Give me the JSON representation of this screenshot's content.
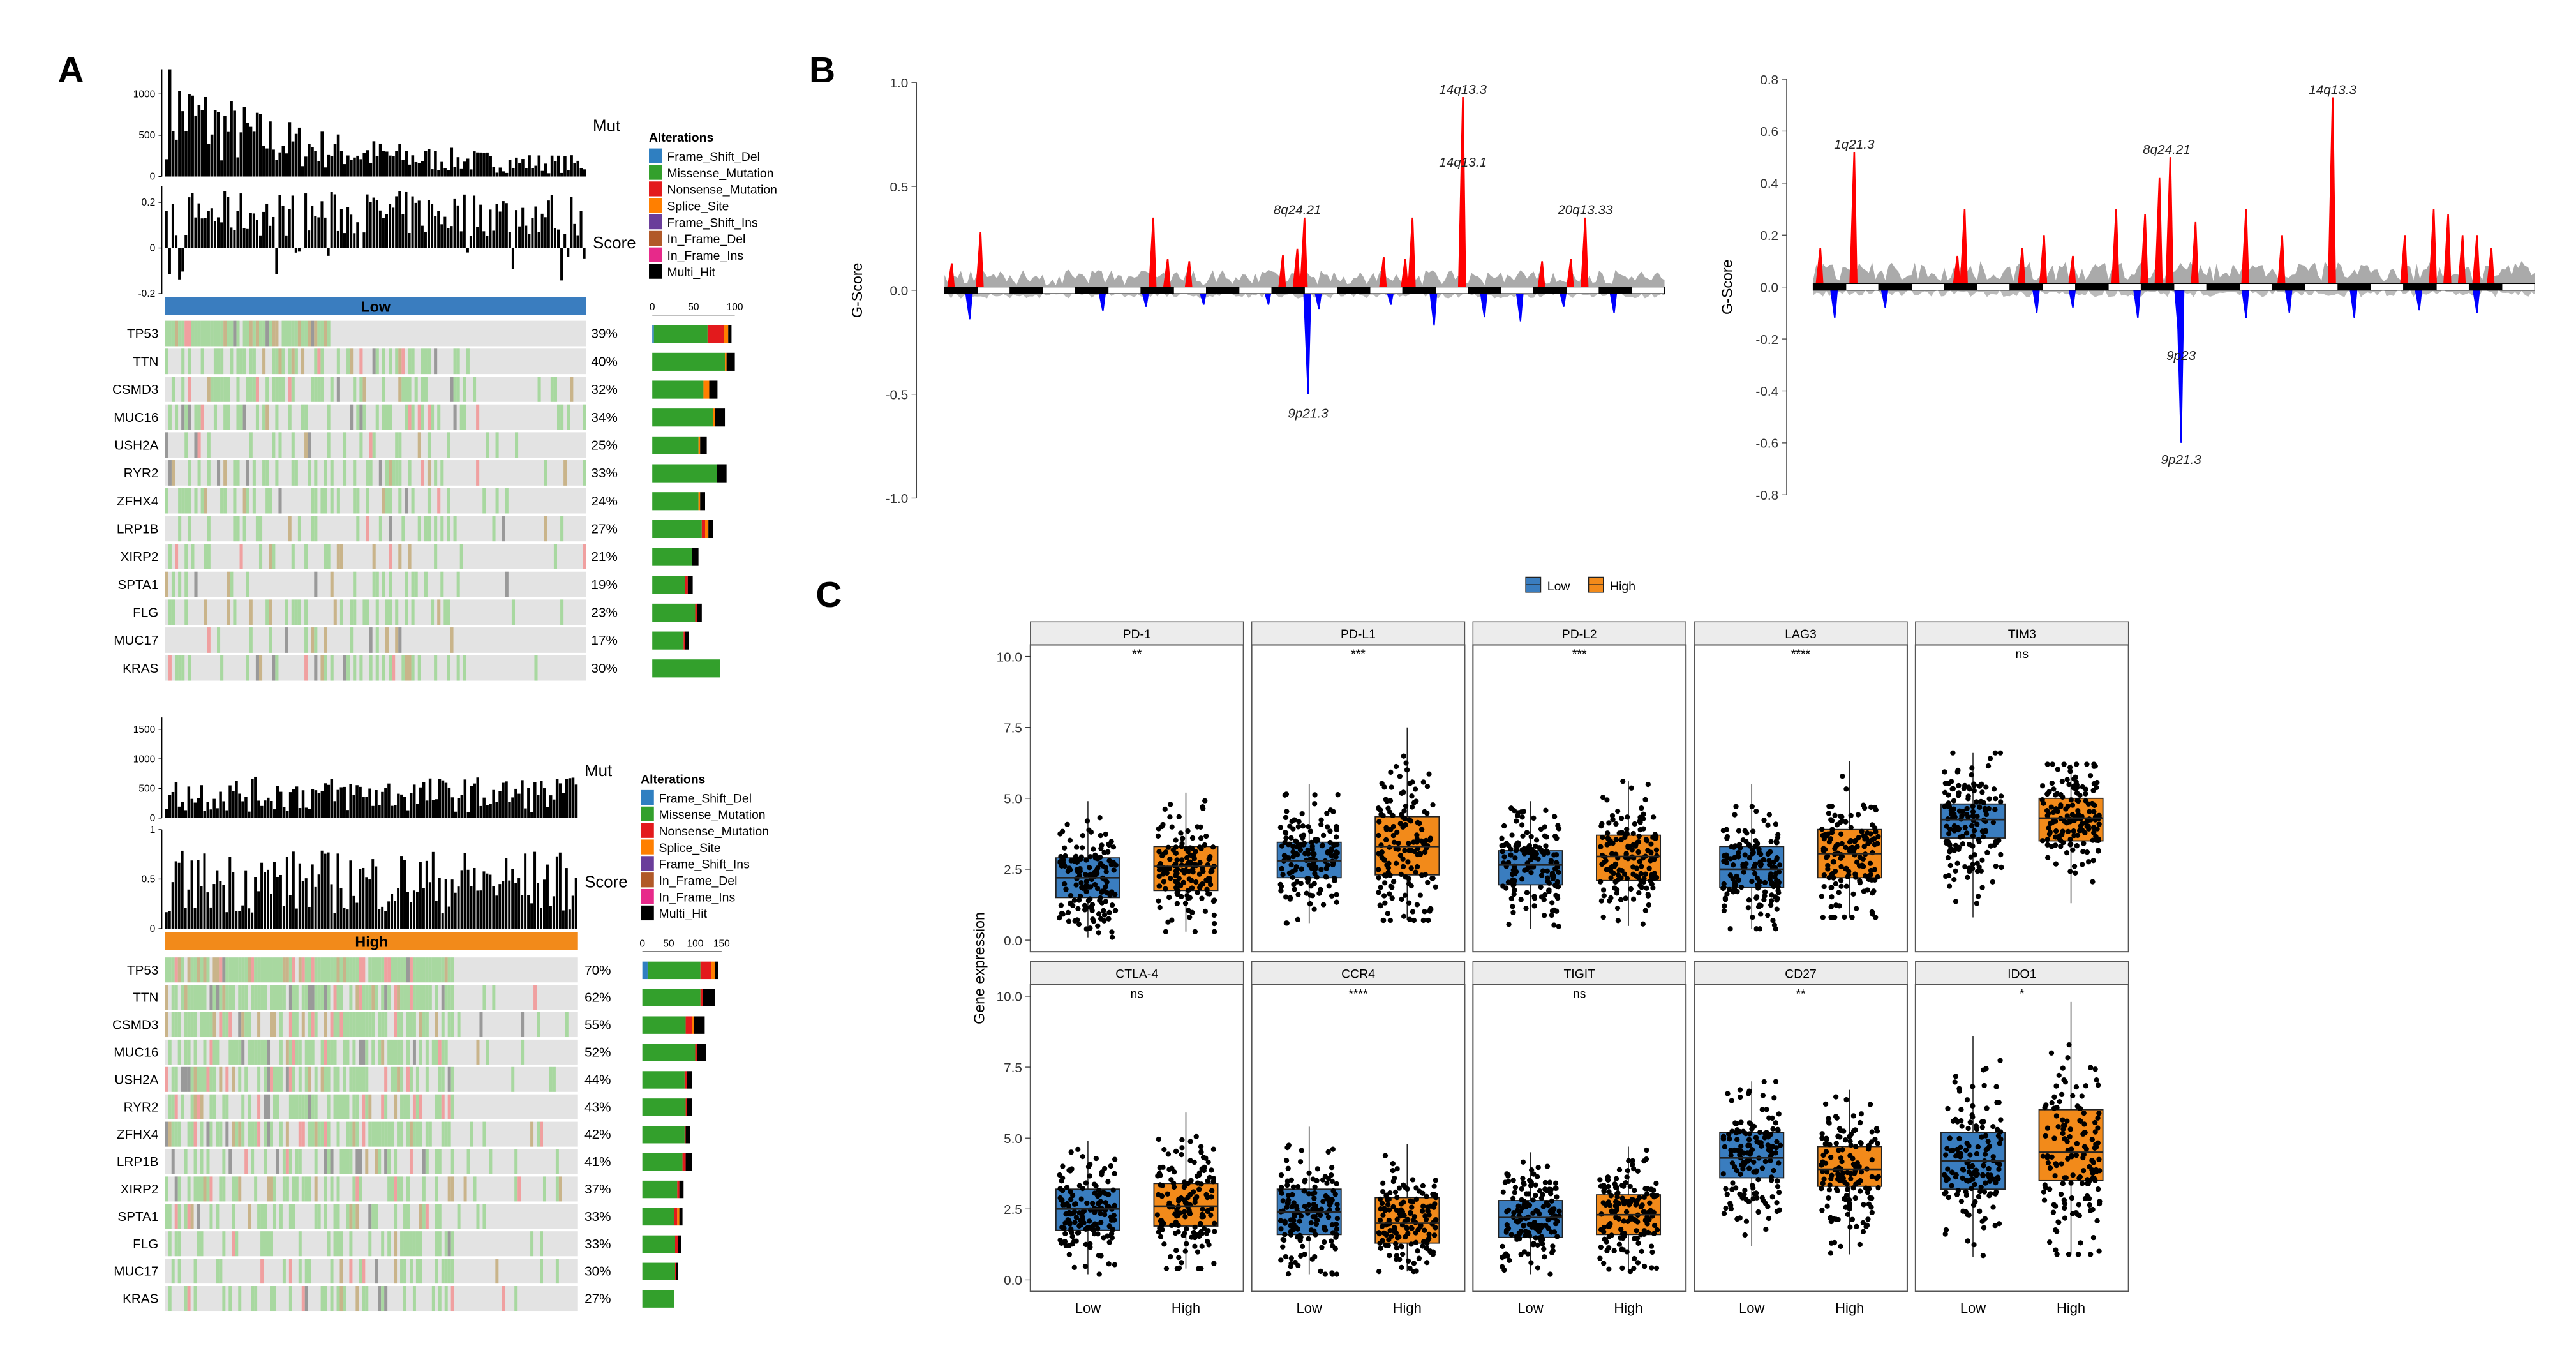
{
  "panels": {
    "a": "A",
    "b": "B",
    "c": "C"
  },
  "colors": {
    "Frame_Shift_Del": "#2f7fc1",
    "Missense_Mutation": "#33a02c",
    "Nonsense_Mutation": "#e31a1c",
    "Splice_Site": "#ff7f00",
    "Frame_Shift_Ins": "#6a3d9a",
    "In_Frame_Del": "#b15928",
    "In_Frame_Ins": "#e7298a",
    "Multi_Hit": "#000000",
    "low": "#3a7dbf",
    "high": "#f28a1a",
    "amp": "#ff0000",
    "del": "#0000ff"
  },
  "chart_data": [
    {
      "type": "oncoplot",
      "group": "Low",
      "mut_label": "Mut",
      "score_label": "Score",
      "mut_ticks": [
        0,
        500,
        1000
      ],
      "mut_ylim": [
        0,
        1300
      ],
      "score_ticks": [
        -0.2,
        0,
        0.2
      ],
      "score_ylim": [
        -0.2,
        0.27
      ],
      "legend_title": "Alterations",
      "legend": [
        "Frame_Shift_Del",
        "Missense_Mutation",
        "Nonsense_Mutation",
        "Splice_Site",
        "Frame_Shift_Ins",
        "In_Frame_Del",
        "In_Frame_Ins",
        "Multi_Hit"
      ],
      "side_ticks": [
        0,
        50,
        100
      ],
      "side_xlim": [
        0,
        110
      ],
      "genes": [
        {
          "gene": "TP53",
          "pct": "39%",
          "counts": {
            "Frame_Shift_Del": 2,
            "Missense_Mutation": 65,
            "Nonsense_Mutation": 20,
            "Splice_Site": 5,
            "Multi_Hit": 4
          }
        },
        {
          "gene": "TTN",
          "pct": "40%",
          "counts": {
            "Missense_Mutation": 88,
            "Splice_Site": 2,
            "Multi_Hit": 10
          }
        },
        {
          "gene": "CSMD3",
          "pct": "32%",
          "counts": {
            "Missense_Mutation": 62,
            "Splice_Site": 7,
            "Multi_Hit": 10
          }
        },
        {
          "gene": "MUC16",
          "pct": "34%",
          "counts": {
            "Missense_Mutation": 74,
            "Splice_Site": 2,
            "Multi_Hit": 12
          }
        },
        {
          "gene": "USH2A",
          "pct": "25%",
          "counts": {
            "Missense_Mutation": 56,
            "Splice_Site": 2,
            "Multi_Hit": 8
          }
        },
        {
          "gene": "RYR2",
          "pct": "33%",
          "counts": {
            "Missense_Mutation": 78,
            "Multi_Hit": 12
          }
        },
        {
          "gene": "ZFHX4",
          "pct": "24%",
          "counts": {
            "Missense_Mutation": 56,
            "Splice_Site": 2,
            "Multi_Hit": 6
          }
        },
        {
          "gene": "LRP1B",
          "pct": "27%",
          "counts": {
            "Missense_Mutation": 60,
            "Nonsense_Mutation": 4,
            "Splice_Site": 4,
            "Multi_Hit": 6
          }
        },
        {
          "gene": "XIRP2",
          "pct": "21%",
          "counts": {
            "Missense_Mutation": 48,
            "Multi_Hit": 8
          }
        },
        {
          "gene": "SPTA1",
          "pct": "19%",
          "counts": {
            "Missense_Mutation": 40,
            "Nonsense_Mutation": 3,
            "Multi_Hit": 6
          }
        },
        {
          "gene": "FLG",
          "pct": "23%",
          "counts": {
            "Missense_Mutation": 52,
            "Nonsense_Mutation": 2,
            "Multi_Hit": 6
          }
        },
        {
          "gene": "MUC17",
          "pct": "17%",
          "counts": {
            "Missense_Mutation": 38,
            "Nonsense_Mutation": 2,
            "Multi_Hit": 4
          }
        },
        {
          "gene": "KRAS",
          "pct": "30%",
          "counts": {
            "Missense_Mutation": 82
          }
        }
      ]
    },
    {
      "type": "oncoplot",
      "group": "High",
      "mut_label": "Mut",
      "score_label": "Score",
      "mut_ticks": [
        0,
        500,
        1000,
        1500
      ],
      "mut_ylim": [
        0,
        1700
      ],
      "score_ticks": [
        0,
        0.5,
        1
      ],
      "score_ylim": [
        0,
        1
      ],
      "legend_title": "Alterations",
      "legend": [
        "Frame_Shift_Del",
        "Missense_Mutation",
        "Nonsense_Mutation",
        "Splice_Site",
        "Frame_Shift_Ins",
        "In_Frame_Del",
        "In_Frame_Ins",
        "Multi_Hit"
      ],
      "side_ticks": [
        0,
        50,
        100,
        150
      ],
      "side_xlim": [
        0,
        165
      ],
      "genes": [
        {
          "gene": "TP53",
          "pct": "70%",
          "counts": {
            "Frame_Shift_Del": 10,
            "Missense_Mutation": 100,
            "Nonsense_Mutation": 20,
            "Splice_Site": 8,
            "Multi_Hit": 6
          }
        },
        {
          "gene": "TTN",
          "pct": "62%",
          "counts": {
            "Missense_Mutation": 110,
            "Nonsense_Mutation": 4,
            "Multi_Hit": 24
          }
        },
        {
          "gene": "CSMD3",
          "pct": "55%",
          "counts": {
            "Missense_Mutation": 82,
            "Nonsense_Mutation": 12,
            "Splice_Site": 4,
            "Multi_Hit": 20
          }
        },
        {
          "gene": "MUC16",
          "pct": "52%",
          "counts": {
            "Missense_Mutation": 100,
            "Nonsense_Mutation": 4,
            "Multi_Hit": 16
          }
        },
        {
          "gene": "USH2A",
          "pct": "44%",
          "counts": {
            "Missense_Mutation": 80,
            "Nonsense_Mutation": 4,
            "Multi_Hit": 10
          }
        },
        {
          "gene": "RYR2",
          "pct": "43%",
          "counts": {
            "Missense_Mutation": 82,
            "Nonsense_Mutation": 2,
            "Multi_Hit": 10
          }
        },
        {
          "gene": "ZFHX4",
          "pct": "42%",
          "counts": {
            "Missense_Mutation": 80,
            "Nonsense_Mutation": 2,
            "Multi_Hit": 8
          }
        },
        {
          "gene": "LRP1B",
          "pct": "41%",
          "counts": {
            "Missense_Mutation": 76,
            "Nonsense_Mutation": 6,
            "Multi_Hit": 12
          }
        },
        {
          "gene": "XIRP2",
          "pct": "37%",
          "counts": {
            "Missense_Mutation": 66,
            "Nonsense_Mutation": 4,
            "Multi_Hit": 8
          }
        },
        {
          "gene": "SPTA1",
          "pct": "33%",
          "counts": {
            "Missense_Mutation": 60,
            "Nonsense_Mutation": 6,
            "Splice_Site": 4,
            "Multi_Hit": 6
          }
        },
        {
          "gene": "FLG",
          "pct": "33%",
          "counts": {
            "Missense_Mutation": 62,
            "Nonsense_Mutation": 6,
            "Multi_Hit": 6
          }
        },
        {
          "gene": "MUC17",
          "pct": "30%",
          "counts": {
            "Missense_Mutation": 62,
            "Nonsense_Mutation": 2,
            "Multi_Hit": 4
          }
        },
        {
          "gene": "KRAS",
          "pct": "27%",
          "counts": {
            "Missense_Mutation": 60
          }
        }
      ]
    },
    {
      "type": "area",
      "name": "GISTIC Low",
      "ylabel": "G-Score",
      "ylim": [
        -1.0,
        1.0
      ],
      "yticks": [
        "1.0",
        "0.5",
        "0.0",
        "-0.5",
        "-1.0"
      ],
      "ytick_values": [
        1.0,
        0.5,
        0.0,
        -0.5,
        -1.0
      ],
      "amp_peaks": [
        [
          0.01,
          0.13
        ],
        [
          0.05,
          0.28
        ],
        [
          0.29,
          0.35
        ],
        [
          0.31,
          0.15
        ],
        [
          0.34,
          0.14
        ],
        [
          0.47,
          0.17
        ],
        [
          0.49,
          0.2
        ],
        [
          0.5,
          0.35
        ],
        [
          0.61,
          0.16
        ],
        [
          0.64,
          0.15
        ],
        [
          0.65,
          0.35
        ],
        [
          0.72,
          0.93
        ],
        [
          0.83,
          0.14
        ],
        [
          0.87,
          0.15
        ],
        [
          0.89,
          0.35
        ]
      ],
      "del_peaks": [
        [
          0.035,
          -0.14
        ],
        [
          0.22,
          -0.1
        ],
        [
          0.28,
          -0.08
        ],
        [
          0.36,
          -0.07
        ],
        [
          0.45,
          -0.07
        ],
        [
          0.505,
          -0.5
        ],
        [
          0.52,
          -0.09
        ],
        [
          0.62,
          -0.07
        ],
        [
          0.68,
          -0.17
        ],
        [
          0.75,
          -0.13
        ],
        [
          0.8,
          -0.15
        ],
        [
          0.86,
          -0.08
        ],
        [
          0.93,
          -0.11
        ]
      ],
      "annotations": [
        {
          "label": "14q13.3",
          "pos": 0.72,
          "value": 0.93
        },
        {
          "label": "14q13.1",
          "pos": 0.72,
          "value": 0.58
        },
        {
          "label": "8q24.21",
          "pos": 0.49,
          "value": 0.35
        },
        {
          "label": "20q13.33",
          "pos": 0.89,
          "value": 0.35
        },
        {
          "label": "9p21.3",
          "pos": 0.505,
          "value": -0.55
        }
      ]
    },
    {
      "type": "area",
      "name": "GISTIC High",
      "ylabel": "G-Score",
      "ylim": [
        -0.8,
        0.8
      ],
      "yticks": [
        "0.8",
        "0.6",
        "0.4",
        "0.2",
        "0.0",
        "-0.2",
        "-0.4",
        "-0.6",
        "-0.8"
      ],
      "ytick_values": [
        0.8,
        0.6,
        0.4,
        0.2,
        0.0,
        -0.2,
        -0.4,
        -0.6,
        -0.8
      ],
      "amp_peaks": [
        [
          0.01,
          0.15
        ],
        [
          0.057,
          0.52
        ],
        [
          0.2,
          0.12
        ],
        [
          0.21,
          0.3
        ],
        [
          0.29,
          0.15
        ],
        [
          0.32,
          0.2
        ],
        [
          0.36,
          0.12
        ],
        [
          0.42,
          0.3
        ],
        [
          0.46,
          0.28
        ],
        [
          0.48,
          0.42
        ],
        [
          0.495,
          0.5
        ],
        [
          0.53,
          0.25
        ],
        [
          0.6,
          0.3
        ],
        [
          0.65,
          0.2
        ],
        [
          0.72,
          0.73
        ],
        [
          0.82,
          0.2
        ],
        [
          0.86,
          0.3
        ],
        [
          0.88,
          0.28
        ],
        [
          0.9,
          0.2
        ],
        [
          0.92,
          0.2
        ],
        [
          0.94,
          0.15
        ]
      ],
      "del_peaks": [
        [
          0.03,
          -0.12
        ],
        [
          0.1,
          -0.08
        ],
        [
          0.31,
          -0.1
        ],
        [
          0.36,
          -0.08
        ],
        [
          0.45,
          -0.12
        ],
        [
          0.507,
          -0.2
        ],
        [
          0.51,
          -0.6
        ],
        [
          0.6,
          -0.12
        ],
        [
          0.66,
          -0.1
        ],
        [
          0.75,
          -0.12
        ],
        [
          0.84,
          -0.09
        ],
        [
          0.92,
          -0.1
        ]
      ],
      "annotations": [
        {
          "label": "1q21.3",
          "pos": 0.057,
          "value": 0.52
        },
        {
          "label": "8q24.21",
          "pos": 0.49,
          "value": 0.5
        },
        {
          "label": "14q13.3",
          "pos": 0.72,
          "value": 0.73
        },
        {
          "label": "9p23",
          "pos": 0.51,
          "value": -0.23
        },
        {
          "label": "9p21.3",
          "pos": 0.51,
          "value": -0.63
        }
      ]
    },
    {
      "type": "box",
      "ylabel": "Gene expression",
      "ylim": [
        0,
        10.5
      ],
      "yticks": [
        "0.0",
        "2.5",
        "5.0",
        "7.5",
        "10.0"
      ],
      "ytick_values": [
        0,
        2.5,
        5,
        7.5,
        10
      ],
      "categories": [
        "Low",
        "High"
      ],
      "legend": [
        "Low",
        "High"
      ],
      "panels": [
        {
          "gene": "PD-1",
          "sig": "**",
          "Low": {
            "min": 0.1,
            "q1": 1.5,
            "median": 2.2,
            "q3": 2.9,
            "max": 4.9
          },
          "High": {
            "min": 0.3,
            "q1": 1.75,
            "median": 2.6,
            "q3": 3.3,
            "max": 5.2
          }
        },
        {
          "gene": "PD-L1",
          "sig": "***",
          "Low": {
            "min": 0.6,
            "q1": 2.2,
            "median": 2.8,
            "q3": 3.45,
            "max": 5.5
          },
          "High": {
            "min": 0.7,
            "q1": 2.3,
            "median": 3.3,
            "q3": 4.35,
            "max": 7.5
          }
        },
        {
          "gene": "PD-L2",
          "sig": "***",
          "Low": {
            "min": 0.4,
            "q1": 1.95,
            "median": 2.65,
            "q3": 3.15,
            "max": 4.9
          },
          "High": {
            "min": 0.5,
            "q1": 2.1,
            "median": 2.95,
            "q3": 3.7,
            "max": 5.6
          }
        },
        {
          "gene": "LAG3",
          "sig": "****",
          "Low": {
            "min": 0.4,
            "q1": 1.85,
            "median": 2.5,
            "q3": 3.3,
            "max": 5.5
          },
          "High": {
            "min": 0.8,
            "q1": 2.2,
            "median": 3.05,
            "q3": 3.9,
            "max": 6.3
          }
        },
        {
          "gene": "TIM3",
          "sig": "ns",
          "Low": {
            "min": 0.8,
            "q1": 3.6,
            "median": 4.25,
            "q3": 4.8,
            "max": 6.6
          },
          "High": {
            "min": 1.3,
            "q1": 3.5,
            "median": 4.3,
            "q3": 5.0,
            "max": 6.2
          }
        },
        {
          "gene": "CTLA-4",
          "sig": "ns",
          "Low": {
            "min": 0.2,
            "q1": 1.75,
            "median": 2.5,
            "q3": 3.2,
            "max": 4.9
          },
          "High": {
            "min": 0.4,
            "q1": 1.9,
            "median": 2.6,
            "q3": 3.4,
            "max": 5.9
          }
        },
        {
          "gene": "CCR4",
          "sig": "****",
          "Low": {
            "min": 0.2,
            "q1": 1.6,
            "median": 2.4,
            "q3": 3.2,
            "max": 5.4
          },
          "High": {
            "min": 0.3,
            "q1": 1.3,
            "median": 2.0,
            "q3": 2.9,
            "max": 4.8
          }
        },
        {
          "gene": "TIGIT",
          "sig": "ns",
          "Low": {
            "min": 0.2,
            "q1": 1.5,
            "median": 2.2,
            "q3": 2.8,
            "max": 4.5
          },
          "High": {
            "min": 0.3,
            "q1": 1.6,
            "median": 2.3,
            "q3": 3.0,
            "max": 4.7
          }
        },
        {
          "gene": "CD27",
          "sig": "**",
          "Low": {
            "min": 1.2,
            "q1": 3.6,
            "median": 4.3,
            "q3": 5.2,
            "max": 7.0
          },
          "High": {
            "min": 0.9,
            "q1": 3.3,
            "median": 3.9,
            "q3": 4.7,
            "max": 6.7
          }
        },
        {
          "gene": "IDO1",
          "sig": "*",
          "Low": {
            "min": 0.8,
            "q1": 3.2,
            "median": 4.2,
            "q3": 5.2,
            "max": 8.6
          },
          "High": {
            "min": 0.9,
            "q1": 3.5,
            "median": 4.5,
            "q3": 6.0,
            "max": 9.8
          }
        }
      ]
    }
  ]
}
